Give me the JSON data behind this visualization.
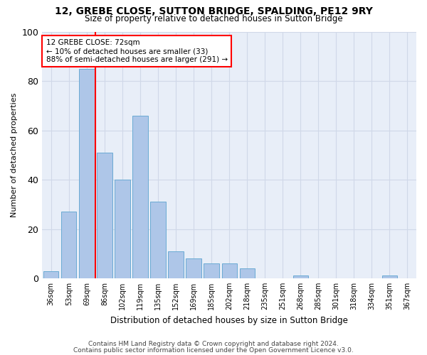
{
  "title1": "12, GREBE CLOSE, SUTTON BRIDGE, SPALDING, PE12 9RY",
  "title2": "Size of property relative to detached houses in Sutton Bridge",
  "xlabel": "Distribution of detached houses by size in Sutton Bridge",
  "ylabel": "Number of detached properties",
  "categories": [
    "36sqm",
    "53sqm",
    "69sqm",
    "86sqm",
    "102sqm",
    "119sqm",
    "135sqm",
    "152sqm",
    "169sqm",
    "185sqm",
    "202sqm",
    "218sqm",
    "235sqm",
    "251sqm",
    "268sqm",
    "285sqm",
    "301sqm",
    "318sqm",
    "334sqm",
    "351sqm",
    "367sqm"
  ],
  "values": [
    3,
    27,
    85,
    51,
    40,
    66,
    31,
    11,
    8,
    6,
    6,
    4,
    0,
    0,
    1,
    0,
    0,
    0,
    0,
    1,
    0
  ],
  "bar_color": "#aec6e8",
  "bar_edge_color": "#6aaad4",
  "annotation_text": "12 GREBE CLOSE: 72sqm\n← 10% of detached houses are smaller (33)\n88% of semi-detached houses are larger (291) →",
  "annotation_box_color": "white",
  "annotation_box_edge": "red",
  "ylim": [
    0,
    100
  ],
  "grid_color": "#d0d8e8",
  "bg_color": "#e8eef8",
  "footer1": "Contains HM Land Registry data © Crown copyright and database right 2024.",
  "footer2": "Contains public sector information licensed under the Open Government Licence v3.0."
}
